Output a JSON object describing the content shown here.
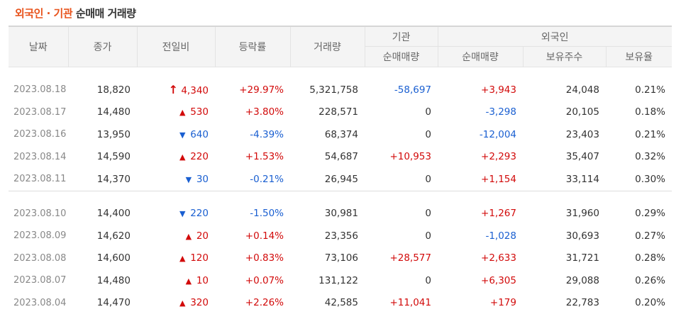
{
  "title": {
    "accent": "외국인 · 기관",
    "rest": "순매매 거래량"
  },
  "headers": {
    "date": "날짜",
    "close": "종가",
    "change": "전일비",
    "rate": "등락률",
    "volume": "거래량",
    "inst_group": "기관",
    "inst_net": "순매매량",
    "foreign_group": "외국인",
    "foreign_net": "순매매량",
    "foreign_shares": "보유주수",
    "foreign_ratio": "보유율"
  },
  "colors": {
    "up": "#d20a0a",
    "down": "#1a5fd1",
    "accent": "#e8531c"
  },
  "groups": [
    [
      {
        "date": "2023.08.18",
        "close": "18,820",
        "dir": "limit-up",
        "change": "4,340",
        "rate": "+29.97%",
        "volume": "5,321,758",
        "inst": "-58,697",
        "foreign": "+3,943",
        "shares": "24,048",
        "ratio": "0.21%"
      },
      {
        "date": "2023.08.17",
        "close": "14,480",
        "dir": "up",
        "change": "530",
        "rate": "+3.80%",
        "volume": "228,571",
        "inst": "0",
        "foreign": "-3,298",
        "shares": "20,105",
        "ratio": "0.18%"
      },
      {
        "date": "2023.08.16",
        "close": "13,950",
        "dir": "down",
        "change": "640",
        "rate": "-4.39%",
        "volume": "68,374",
        "inst": "0",
        "foreign": "-12,004",
        "shares": "23,403",
        "ratio": "0.21%"
      },
      {
        "date": "2023.08.14",
        "close": "14,590",
        "dir": "up",
        "change": "220",
        "rate": "+1.53%",
        "volume": "54,687",
        "inst": "+10,953",
        "foreign": "+2,293",
        "shares": "35,407",
        "ratio": "0.32%"
      },
      {
        "date": "2023.08.11",
        "close": "14,370",
        "dir": "down",
        "change": "30",
        "rate": "-0.21%",
        "volume": "26,945",
        "inst": "0",
        "foreign": "+1,154",
        "shares": "33,114",
        "ratio": "0.30%"
      }
    ],
    [
      {
        "date": "2023.08.10",
        "close": "14,400",
        "dir": "down",
        "change": "220",
        "rate": "-1.50%",
        "volume": "30,981",
        "inst": "0",
        "foreign": "+1,267",
        "shares": "31,960",
        "ratio": "0.29%"
      },
      {
        "date": "2023.08.09",
        "close": "14,620",
        "dir": "up",
        "change": "20",
        "rate": "+0.14%",
        "volume": "23,356",
        "inst": "0",
        "foreign": "-1,028",
        "shares": "30,693",
        "ratio": "0.27%"
      },
      {
        "date": "2023.08.08",
        "close": "14,600",
        "dir": "up",
        "change": "120",
        "rate": "+0.83%",
        "volume": "73,106",
        "inst": "+28,577",
        "foreign": "+2,633",
        "shares": "31,721",
        "ratio": "0.28%"
      },
      {
        "date": "2023.08.07",
        "close": "14,480",
        "dir": "up",
        "change": "10",
        "rate": "+0.07%",
        "volume": "131,122",
        "inst": "0",
        "foreign": "+6,305",
        "shares": "29,088",
        "ratio": "0.26%"
      },
      {
        "date": "2023.08.04",
        "close": "14,470",
        "dir": "up",
        "change": "320",
        "rate": "+2.26%",
        "volume": "42,585",
        "inst": "+11,041",
        "foreign": "+179",
        "shares": "22,783",
        "ratio": "0.20%"
      }
    ]
  ],
  "icons": {
    "up": "triangle-up-icon",
    "down": "triangle-down-icon",
    "limit-up": "limit-up-arrow-icon"
  }
}
